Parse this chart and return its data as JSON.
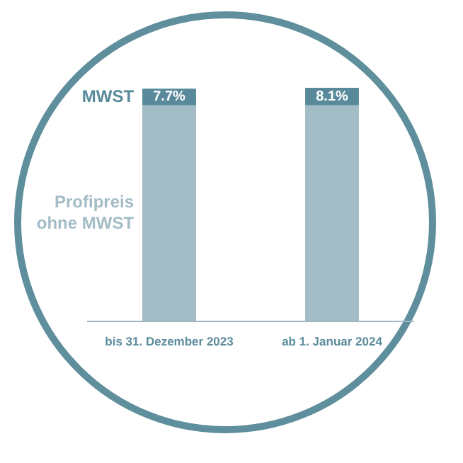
{
  "chart_data": {
    "type": "bar",
    "stacked": true,
    "categories": [
      "bis 31. Dezember 2023",
      "ab 1. Januar 2024"
    ],
    "ylim": [
      0,
      108.1
    ],
    "tick_labels": "x",
    "series": [
      {
        "name": "Profipreis ohne MWST",
        "color": "#a3bcc6",
        "values": [
          100,
          100
        ]
      },
      {
        "name": "MWST",
        "color": "#588a9b",
        "values": [
          7.7,
          8.1
        ],
        "value_labels": [
          "7.7%",
          "8.1%"
        ]
      }
    ]
  }
}
